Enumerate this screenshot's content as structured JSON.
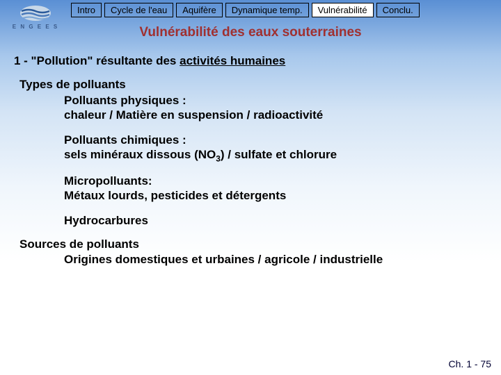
{
  "logo": {
    "text": "E N G E E S"
  },
  "tabs": [
    {
      "label": "Intro",
      "active": false
    },
    {
      "label": "Cycle de l'eau",
      "active": false
    },
    {
      "label": "Aquifère",
      "active": false
    },
    {
      "label": "Dynamique temp.",
      "active": false
    },
    {
      "label": "Vulnérabilité",
      "active": true
    },
    {
      "label": "Conclu.",
      "active": false
    }
  ],
  "title": "Vulnérabilité des eaux souterraines",
  "heading": {
    "prefix": "1 - \"Pollution\" résultante des ",
    "underlined": "activités humaines"
  },
  "types_label": "Types de polluants",
  "blocks": [
    {
      "title": "Polluants physiques :",
      "desc": "chaleur / Matière en suspension / radioactivité"
    },
    {
      "title": "Polluants chimiques :",
      "desc_html": "sels minéraux dissous (NO<sub>3</sub>) / sulfate et chlorure"
    },
    {
      "title": "Micropolluants:",
      "desc": "Métaux lourds, pesticides et détergents"
    },
    {
      "title": "Hydrocarbures",
      "desc": ""
    }
  ],
  "sources_label": "Sources de polluants",
  "sources_line": "Origines domestiques et urbaines / agricole / industrielle",
  "footer": "Ch. 1 - 75",
  "colors": {
    "title": "#a03030",
    "text": "#000000",
    "footer": "#000033",
    "logo_text": "#3a5a8a"
  }
}
